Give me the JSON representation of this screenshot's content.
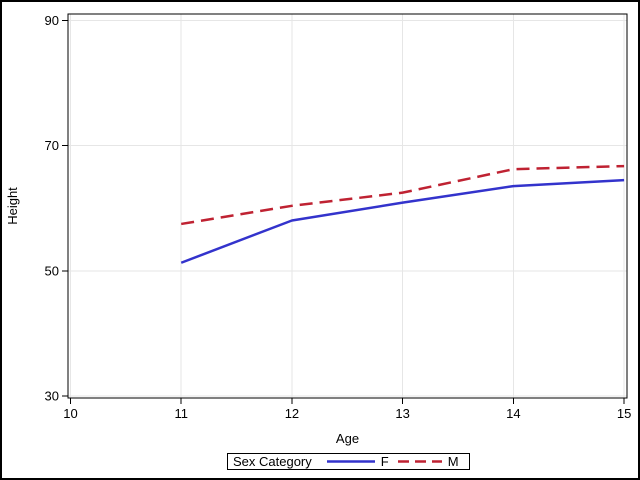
{
  "figure": {
    "background": "#ffffff",
    "border_color": "#000000"
  },
  "chart_data": {
    "type": "line",
    "title": "",
    "xlabel": "Age",
    "ylabel": "Height",
    "xlim": [
      10,
      15
    ],
    "ylim": [
      30,
      90
    ],
    "xticks": [
      10,
      11,
      12,
      13,
      14,
      15
    ],
    "yticks": [
      30,
      50,
      70,
      90
    ],
    "grid": true,
    "x": [
      11,
      12,
      13,
      14,
      15
    ],
    "series": [
      {
        "name": "F",
        "values": [
          51.3,
          58.05,
          60.9,
          63.55,
          64.5
        ],
        "color": "#3333CC",
        "dash": "solid"
      },
      {
        "name": "M",
        "values": [
          57.5,
          60.4,
          62.5,
          66.25,
          66.75
        ],
        "color": "#BF2232",
        "dash": "dashed"
      }
    ],
    "legend": {
      "title": "Sex Category",
      "position": "bottom",
      "entries": [
        "F",
        "M"
      ]
    },
    "colors": {
      "gridline": "#e6e6e6",
      "axis": "#000000",
      "text": "#000000",
      "wall": "#ffffff"
    }
  }
}
